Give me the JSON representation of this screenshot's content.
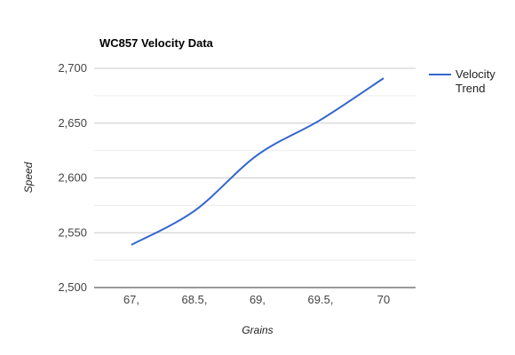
{
  "chart_data": {
    "type": "line",
    "title": "WC857 Velocity Data",
    "xlabel": "Grains",
    "ylabel": "Speed",
    "categories": [
      "67,",
      "68.5,",
      "69,",
      "69.5,",
      "70"
    ],
    "series": [
      {
        "name": "Velocity Trend",
        "values": [
          2539,
          2570,
          2621,
          2653,
          2691
        ],
        "color": "#3366cc"
      }
    ],
    "y_ticks": [
      "2,500",
      "2,550",
      "2,600",
      "2,650",
      "2,700"
    ],
    "ylim": [
      2500,
      2700
    ],
    "grid": true,
    "legend_position": "right",
    "legend_lines": [
      "Velocity",
      "Trend"
    ]
  }
}
